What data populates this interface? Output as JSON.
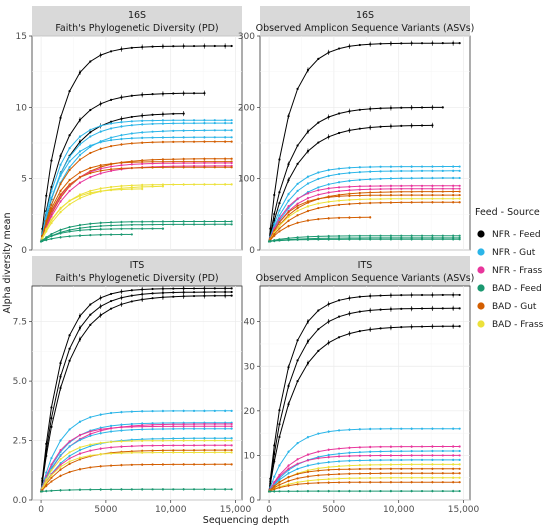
{
  "chart_data": {
    "type": "line",
    "xlabel": "Sequencing depth",
    "ylabel": "Alpha diversity mean",
    "legend": {
      "title": "Feed - Source",
      "placement": "right",
      "entries": [
        {
          "label": "NFR - Feed",
          "color": "#000000"
        },
        {
          "label": "NFR - Gut",
          "color": "#2bb5e8"
        },
        {
          "label": "NFR - Frass",
          "color": "#e8369c"
        },
        {
          "label": "BAD - Feed",
          "color": "#1a9870"
        },
        {
          "label": "BAD - Gut",
          "color": "#d35e00"
        },
        {
          "label": "BAD - Frass",
          "color": "#ece13a"
        }
      ]
    },
    "x_ticks": [
      0,
      5000,
      10000,
      15000
    ],
    "x_tick_labels": [
      "0",
      "5000",
      "10,000",
      "15,000"
    ],
    "panels": [
      {
        "strip_top": "16S",
        "strip_bottom": "Faith's Phylogenetic Diversity (PD)",
        "ylim": [
          0,
          15
        ],
        "y_ticks": [
          0,
          5,
          10,
          15
        ],
        "y_tick_labels": [
          "0",
          "5",
          "10",
          "15"
        ],
        "grid": true,
        "series": [
          {
            "group": "NFR - Feed",
            "color": "#000000",
            "max_depth": 14700,
            "plateau": 14.3
          },
          {
            "group": "NFR - Feed",
            "color": "#000000",
            "max_depth": 12700,
            "plateau": 11.0
          },
          {
            "group": "NFR - Feed",
            "color": "#000000",
            "max_depth": 11500,
            "plateau": 9.6
          },
          {
            "group": "NFR - Gut",
            "color": "#2bb5e8",
            "max_depth": 14700,
            "plateau": 9.1
          },
          {
            "group": "NFR - Gut",
            "color": "#2bb5e8",
            "max_depth": 14700,
            "plateau": 8.9
          },
          {
            "group": "NFR - Gut",
            "color": "#2bb5e8",
            "max_depth": 14700,
            "plateau": 8.4
          },
          {
            "group": "NFR - Gut",
            "color": "#2bb5e8",
            "max_depth": 14700,
            "plateau": 7.9
          },
          {
            "group": "BAD - Gut",
            "color": "#d35e00",
            "max_depth": 14700,
            "plateau": 7.6
          },
          {
            "group": "BAD - Gut",
            "color": "#d35e00",
            "max_depth": 14700,
            "plateau": 6.4
          },
          {
            "group": "BAD - Gut",
            "color": "#d35e00",
            "max_depth": 14700,
            "plateau": 6.2
          },
          {
            "group": "NFR - Frass",
            "color": "#e8369c",
            "max_depth": 14700,
            "plateau": 6.1
          },
          {
            "group": "NFR - Frass",
            "color": "#e8369c",
            "max_depth": 14700,
            "plateau": 5.9
          },
          {
            "group": "BAD - Gut",
            "color": "#d35e00",
            "max_depth": 14700,
            "plateau": 5.8
          },
          {
            "group": "BAD - Frass",
            "color": "#ece13a",
            "max_depth": 14700,
            "plateau": 4.6
          },
          {
            "group": "BAD - Frass",
            "color": "#ece13a",
            "max_depth": 10000,
            "plateau": 4.5
          },
          {
            "group": "BAD - Frass",
            "color": "#ece13a",
            "max_depth": 8000,
            "plateau": 4.3
          },
          {
            "group": "BAD - Feed",
            "color": "#1a9870",
            "max_depth": 14700,
            "plateau": 2.0
          },
          {
            "group": "BAD - Feed",
            "color": "#1a9870",
            "max_depth": 14700,
            "plateau": 1.8
          },
          {
            "group": "BAD - Feed",
            "color": "#1a9870",
            "max_depth": 9500,
            "plateau": 1.5
          },
          {
            "group": "BAD - Feed",
            "color": "#1a9870",
            "max_depth": 7000,
            "plateau": 1.1
          }
        ]
      },
      {
        "strip_top": "16S",
        "strip_bottom": "Observed Amplicon Sequence Variants (ASVs)",
        "ylim": [
          0,
          300
        ],
        "y_ticks": [
          0,
          100,
          200,
          300
        ],
        "y_tick_labels": [
          "0",
          "100",
          "200",
          "300"
        ],
        "grid": true,
        "series": [
          {
            "group": "NFR - Feed",
            "color": "#000000",
            "max_depth": 14700,
            "plateau": 290
          },
          {
            "group": "NFR - Feed",
            "color": "#000000",
            "max_depth": 14000,
            "plateau": 200
          },
          {
            "group": "NFR - Feed",
            "color": "#000000",
            "max_depth": 12800,
            "plateau": 175
          },
          {
            "group": "NFR - Gut",
            "color": "#2bb5e8",
            "max_depth": 14700,
            "plateau": 117
          },
          {
            "group": "NFR - Gut",
            "color": "#2bb5e8",
            "max_depth": 14700,
            "plateau": 111
          },
          {
            "group": "NFR - Gut",
            "color": "#2bb5e8",
            "max_depth": 14700,
            "plateau": 101
          },
          {
            "group": "NFR - Frass",
            "color": "#e8369c",
            "max_depth": 14700,
            "plateau": 90
          },
          {
            "group": "NFR - Frass",
            "color": "#e8369c",
            "max_depth": 14700,
            "plateau": 86
          },
          {
            "group": "BAD - Gut",
            "color": "#d35e00",
            "max_depth": 14700,
            "plateau": 82
          },
          {
            "group": "BAD - Gut",
            "color": "#d35e00",
            "max_depth": 14700,
            "plateau": 77
          },
          {
            "group": "BAD - Frass",
            "color": "#ece13a",
            "max_depth": 14700,
            "plateau": 72
          },
          {
            "group": "BAD - Gut",
            "color": "#d35e00",
            "max_depth": 14700,
            "plateau": 67
          },
          {
            "group": "BAD - Gut",
            "color": "#d35e00",
            "max_depth": 8000,
            "plateau": 46
          },
          {
            "group": "BAD - Feed",
            "color": "#1a9870",
            "max_depth": 14700,
            "plateau": 20
          },
          {
            "group": "BAD - Feed",
            "color": "#1a9870",
            "max_depth": 14700,
            "plateau": 17
          },
          {
            "group": "BAD - Feed",
            "color": "#1a9870",
            "max_depth": 14700,
            "plateau": 15
          }
        ]
      },
      {
        "strip_top": "ITS",
        "strip_bottom": "Faith's Phylogenetic Diversity (PD)",
        "ylim": [
          0,
          9
        ],
        "y_ticks": [
          0,
          2.5,
          5,
          7.5
        ],
        "y_tick_labels": [
          "0.0",
          "2.5",
          "5.0",
          "7.5"
        ],
        "grid": true,
        "series": [
          {
            "group": "NFR - Feed",
            "color": "#000000",
            "max_depth": 14700,
            "plateau": 8.9
          },
          {
            "group": "NFR - Feed",
            "color": "#000000",
            "max_depth": 14700,
            "plateau": 8.75
          },
          {
            "group": "NFR - Feed",
            "color": "#000000",
            "max_depth": 14700,
            "plateau": 8.6
          },
          {
            "group": "NFR - Gut",
            "color": "#2bb5e8",
            "max_depth": 14700,
            "plateau": 3.75
          },
          {
            "group": "NFR - Gut",
            "color": "#2bb5e8",
            "max_depth": 14700,
            "plateau": 3.25
          },
          {
            "group": "NFR - Frass",
            "color": "#e8369c",
            "max_depth": 14700,
            "plateau": 3.2
          },
          {
            "group": "NFR - Frass",
            "color": "#e8369c",
            "max_depth": 14700,
            "plateau": 3.1
          },
          {
            "group": "NFR - Gut",
            "color": "#2bb5e8",
            "max_depth": 14700,
            "plateau": 3.0
          },
          {
            "group": "NFR - Gut",
            "color": "#2bb5e8",
            "max_depth": 14700,
            "plateau": 2.6
          },
          {
            "group": "BAD - Frass",
            "color": "#ece13a",
            "max_depth": 14700,
            "plateau": 2.5
          },
          {
            "group": "NFR - Frass",
            "color": "#e8369c",
            "max_depth": 14700,
            "plateau": 2.3
          },
          {
            "group": "BAD - Gut",
            "color": "#d35e00",
            "max_depth": 14700,
            "plateau": 2.1
          },
          {
            "group": "BAD - Frass",
            "color": "#ece13a",
            "max_depth": 14700,
            "plateau": 2.0
          },
          {
            "group": "BAD - Gut",
            "color": "#d35e00",
            "max_depth": 14700,
            "plateau": 1.5
          },
          {
            "group": "BAD - Feed",
            "color": "#1a9870",
            "max_depth": 14700,
            "plateau": 0.45
          }
        ]
      },
      {
        "strip_top": "ITS",
        "strip_bottom": "Observed Amplicon Sequence Variants (ASVs)",
        "ylim": [
          0,
          48
        ],
        "y_ticks": [
          0,
          10,
          20,
          30,
          40
        ],
        "y_tick_labels": [
          "0",
          "10",
          "20",
          "30",
          "40"
        ],
        "grid": true,
        "series": [
          {
            "group": "NFR - Feed",
            "color": "#000000",
            "max_depth": 14700,
            "plateau": 46
          },
          {
            "group": "NFR - Feed",
            "color": "#000000",
            "max_depth": 14700,
            "plateau": 43
          },
          {
            "group": "NFR - Feed",
            "color": "#000000",
            "max_depth": 14700,
            "plateau": 39
          },
          {
            "group": "NFR - Gut",
            "color": "#2bb5e8",
            "max_depth": 14700,
            "plateau": 16
          },
          {
            "group": "NFR - Frass",
            "color": "#e8369c",
            "max_depth": 14700,
            "plateau": 12
          },
          {
            "group": "NFR - Gut",
            "color": "#2bb5e8",
            "max_depth": 14700,
            "plateau": 11
          },
          {
            "group": "NFR - Frass",
            "color": "#e8369c",
            "max_depth": 14700,
            "plateau": 10
          },
          {
            "group": "NFR - Gut",
            "color": "#2bb5e8",
            "max_depth": 14700,
            "plateau": 9
          },
          {
            "group": "BAD - Frass",
            "color": "#ece13a",
            "max_depth": 14700,
            "plateau": 8
          },
          {
            "group": "BAD - Gut",
            "color": "#d35e00",
            "max_depth": 14700,
            "plateau": 7
          },
          {
            "group": "BAD - Gut",
            "color": "#d35e00",
            "max_depth": 14700,
            "plateau": 6
          },
          {
            "group": "BAD - Frass",
            "color": "#ece13a",
            "max_depth": 14700,
            "plateau": 5
          },
          {
            "group": "BAD - Gut",
            "color": "#d35e00",
            "max_depth": 14700,
            "plateau": 4
          },
          {
            "group": "BAD - Feed",
            "color": "#1a9870",
            "max_depth": 14700,
            "plateau": 2
          }
        ]
      }
    ]
  }
}
